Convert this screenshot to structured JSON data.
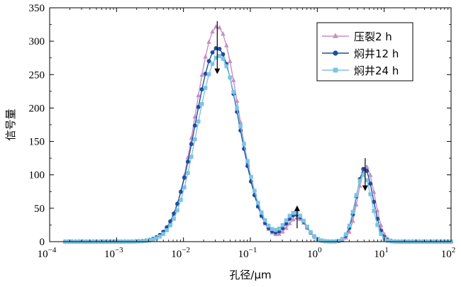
{
  "chart_data": {
    "type": "line",
    "xscale": "log",
    "xlim": [
      0.0001,
      100
    ],
    "ylim": [
      0,
      350
    ],
    "xlabel": "孔径/μm",
    "ylabel": "信号量",
    "grid": false,
    "legend_position": "top-right",
    "x_ticks": [
      {
        "base": "10",
        "exp": "−4"
      },
      {
        "base": "10",
        "exp": "−3"
      },
      {
        "base": "10",
        "exp": "−2"
      },
      {
        "base": "10",
        "exp": "−1"
      },
      {
        "base": "10",
        "exp": "0"
      },
      {
        "base": "10",
        "exp": "1"
      },
      {
        "base": "10",
        "exp": "2"
      }
    ],
    "y_ticks": [
      "0",
      "50",
      "100",
      "150",
      "200",
      "250",
      "300",
      "350"
    ],
    "x_range_data": [
      0.00017,
      100
    ],
    "series": [
      {
        "name": "压裂2 h",
        "color": "#c68fc4",
        "marker": "triangle",
        "peaks": [
          {
            "center": 0.032,
            "height": 322,
            "sigma_log10": 0.32
          },
          {
            "center": 0.5,
            "height": 35,
            "sigma_log10": 0.145
          },
          {
            "center": 5.4,
            "height": 112,
            "sigma_log10": 0.125
          }
        ]
      },
      {
        "name": "焖井12 h",
        "color": "#1f4e9c",
        "marker": "circle",
        "peaks": [
          {
            "center": 0.032,
            "height": 290,
            "sigma_log10": 0.33
          },
          {
            "center": 0.48,
            "height": 40,
            "sigma_log10": 0.15
          },
          {
            "center": 5.1,
            "height": 110,
            "sigma_log10": 0.125
          }
        ]
      },
      {
        "name": "焖井24 h",
        "color": "#7ec3e4",
        "marker": "square",
        "peaks": [
          {
            "center": 0.034,
            "height": 278,
            "sigma_log10": 0.33
          },
          {
            "center": 0.47,
            "height": 43,
            "sigma_log10": 0.155
          },
          {
            "center": 4.9,
            "height": 100,
            "sigma_log10": 0.125
          }
        ]
      }
    ],
    "arrows": [
      {
        "x": 0.032,
        "y_from": 330,
        "y_to": 255
      },
      {
        "x": 0.5,
        "y_from": 20,
        "y_to": 50
      },
      {
        "x": 5.2,
        "y_from": 125,
        "y_to": 80
      }
    ]
  }
}
